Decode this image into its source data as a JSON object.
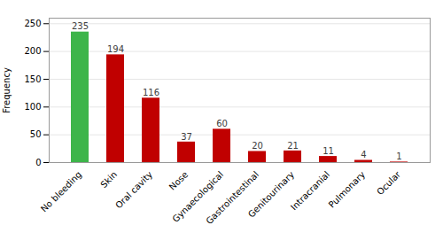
{
  "chart_data": {
    "type": "bar",
    "categories": [
      "No bleeding",
      "Skin",
      "Oral cavity",
      "Nose",
      "Gynaecological",
      "Gastrointestinal",
      "Genitourinary",
      "Intracranial",
      "Pulmonary",
      "Ocular"
    ],
    "values": [
      235,
      194,
      116,
      37,
      60,
      20,
      21,
      11,
      4,
      1
    ],
    "colors": [
      "#3db54a",
      "#c00000",
      "#c00000",
      "#c00000",
      "#c00000",
      "#c00000",
      "#c00000",
      "#c00000",
      "#c00000",
      "#c00000"
    ],
    "ylabel": "Frequency",
    "ylim": [
      0,
      260
    ],
    "yticks": [
      0,
      50,
      100,
      150,
      200,
      250
    ],
    "grid": true,
    "data_labels": true
  }
}
